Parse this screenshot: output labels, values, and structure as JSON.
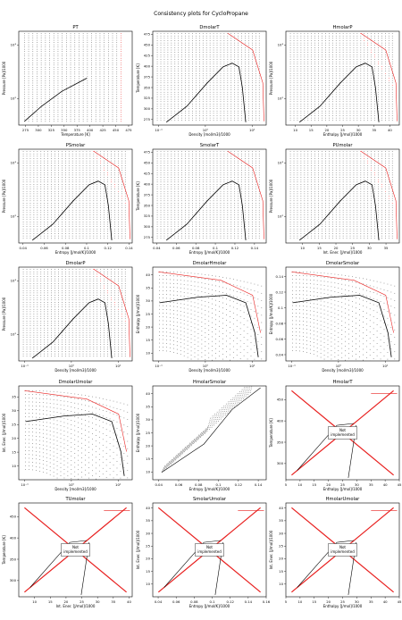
{
  "suptitle": "Consistency plots for CycloPropane",
  "colors": {
    "envelope": "#000000",
    "grid": "#555555",
    "red": "#e8201f",
    "frame": "#000000"
  },
  "not_implemented_label": "Not\nimplemented",
  "chart_data": [
    {
      "id": "PT",
      "type": "scatter",
      "title": "PT",
      "xlabel": "Temperature [K]",
      "ylabel": "Pressure [Pa]/1000",
      "xlim": [
        262,
        482
      ],
      "ylim": [
        32,
        1800
      ],
      "ylog": true,
      "xticks": [
        275,
        300,
        325,
        350,
        375,
        400,
        425,
        450,
        475
      ],
      "yticks": [
        {
          "v": 100,
          "l": "10²"
        },
        {
          "v": 1000,
          "l": "10³"
        }
      ],
      "pattern": "pt"
    },
    {
      "id": "DmolarT",
      "type": "scatter",
      "title": "DmolarT",
      "xlabel": "Density [mol/m3]/1000",
      "ylabel": "Temperature [K]",
      "xlim": [
        0.075,
        20
      ],
      "ylim": [
        262,
        482
      ],
      "xlog": true,
      "xticks": [
        {
          "v": 0.1,
          "l": "10⁻¹"
        },
        {
          "v": 1,
          "l": "10⁰"
        },
        {
          "v": 10,
          "l": "10¹"
        }
      ],
      "yticks": [
        275,
        300,
        325,
        350,
        375,
        400,
        425,
        450,
        475
      ],
      "pattern": "dome_T"
    },
    {
      "id": "HmolarP",
      "type": "scatter",
      "title": "HmolarP",
      "xlabel": "Enthalpy [J/mol]/1000",
      "ylabel": "Pressure [Pa]/1000",
      "xlim": [
        7,
        43
      ],
      "ylim": [
        32,
        1800
      ],
      "ylog": true,
      "xticks": [
        10,
        15,
        20,
        25,
        30,
        35,
        40
      ],
      "yticks": [
        {
          "v": 100,
          "l": "10²"
        },
        {
          "v": 1000,
          "l": "10³"
        }
      ],
      "pattern": "dome_P"
    },
    {
      "id": "PSmolar",
      "type": "scatter",
      "title": "PSmolar",
      "xlabel": "Entropy [J/mol/K]/1000",
      "ylabel": "Pressure [Pa]/1000",
      "xlim": [
        0.036,
        0.143
      ],
      "ylim": [
        32,
        1800
      ],
      "ylog": true,
      "xticks": [
        0.04,
        0.06,
        0.08,
        0.1,
        0.12,
        0.14
      ],
      "yticks": [
        {
          "v": 100,
          "l": "10²"
        },
        {
          "v": 1000,
          "l": "10³"
        }
      ],
      "pattern": "dome_P"
    },
    {
      "id": "SmolarT",
      "type": "scatter",
      "title": "SmolarT",
      "xlabel": "Entropy [J/mol/K]/1000",
      "ylabel": "Temperature [K]",
      "xlim": [
        0.036,
        0.152
      ],
      "ylim": [
        262,
        482
      ],
      "xticks": [
        0.04,
        0.06,
        0.08,
        0.1,
        0.12,
        0.14
      ],
      "yticks": [
        275,
        300,
        325,
        350,
        375,
        400,
        425,
        450,
        475
      ],
      "pattern": "dome_T"
    },
    {
      "id": "PUmolar",
      "type": "scatter",
      "title": "PUmolar",
      "xlabel": "Int. Ener. [J/mol]/1000",
      "ylabel": "Pressure [Pa]/1000",
      "xlim": [
        5,
        39
      ],
      "ylim": [
        32,
        1800
      ],
      "ylog": true,
      "xticks": [
        10,
        15,
        20,
        25,
        30,
        35
      ],
      "yticks": [
        {
          "v": 100,
          "l": "10²"
        },
        {
          "v": 1000,
          "l": "10³"
        }
      ],
      "pattern": "dome_P"
    },
    {
      "id": "DmolarP",
      "type": "scatter",
      "title": "DmolarP",
      "xlabel": "Density [mol/m3]/1000",
      "ylabel": "Pressure [Pa]/1000",
      "xlim": [
        0.075,
        20
      ],
      "ylim": [
        32,
        1800
      ],
      "xlog": true,
      "ylog": true,
      "xticks": [
        {
          "v": 0.1,
          "l": "10⁻¹"
        },
        {
          "v": 1,
          "l": "10⁰"
        },
        {
          "v": 10,
          "l": "10¹"
        }
      ],
      "yticks": [
        {
          "v": 100,
          "l": "10²"
        },
        {
          "v": 1000,
          "l": "10³"
        }
      ],
      "pattern": "dome_P"
    },
    {
      "id": "DmolarHmolar",
      "type": "scatter",
      "title": "DmolarHmolar",
      "xlabel": "Density [mol/m3]/1000",
      "ylabel": "Enthalpy [J/mol]/1000",
      "xlim": [
        0.075,
        20
      ],
      "ylim": [
        7,
        43
      ],
      "xlog": true,
      "xticks": [
        {
          "v": 0.1,
          "l": "10⁻¹"
        },
        {
          "v": 1,
          "l": "10⁰"
        },
        {
          "v": 10,
          "l": "10¹"
        }
      ],
      "yticks": [
        10,
        15,
        20,
        25,
        30,
        35,
        40
      ],
      "pattern": "fan"
    },
    {
      "id": "DmolarSmolar",
      "type": "scatter",
      "title": "DmolarSmolar",
      "xlabel": "Density [mol/m3]/1000",
      "ylabel": "Entropy [J/mol/K]/1000",
      "xlim": [
        0.075,
        20
      ],
      "ylim": [
        0.032,
        0.152
      ],
      "xlog": true,
      "xticks": [
        {
          "v": 0.1,
          "l": "10⁻¹"
        },
        {
          "v": 1,
          "l": "10⁰"
        },
        {
          "v": 10,
          "l": "10¹"
        }
      ],
      "yticks": [
        0.04,
        0.06,
        0.08,
        0.1,
        0.12,
        0.14
      ],
      "pattern": "fan"
    },
    {
      "id": "DmolarUmolar",
      "type": "scatter",
      "title": "DmolarUmolar",
      "xlabel": "Density [mol/m3]/1000",
      "ylabel": "Int. Ener. [J/mol]/1000",
      "xlim": [
        0.075,
        20
      ],
      "ylim": [
        5,
        39
      ],
      "xlog": true,
      "xticks": [
        {
          "v": 0.1,
          "l": "10⁻¹"
        },
        {
          "v": 1,
          "l": "10⁰"
        },
        {
          "v": 10,
          "l": "10¹"
        }
      ],
      "yticks": [
        10,
        15,
        20,
        25,
        30,
        35
      ],
      "pattern": "fan"
    },
    {
      "id": "HmolarSmolar",
      "type": "scatter",
      "title": "HmolarSmolar",
      "xlabel": "Entropy [J/mol/K]/1000",
      "ylabel": "Enthalpy [J/mol]/1000",
      "xlim": [
        0.034,
        0.148
      ],
      "ylim": [
        7,
        43
      ],
      "xticks": [
        0.04,
        0.06,
        0.08,
        0.1,
        0.12,
        0.14
      ],
      "yticks": [
        10,
        15,
        20,
        25,
        30,
        35,
        40
      ],
      "pattern": "band"
    },
    {
      "id": "HmolarT",
      "type": "scatter",
      "title": "HmolarT",
      "xlabel": "Enthalpy [J/mol]/1000",
      "ylabel": "Temperature [K]",
      "xlim": [
        5,
        45
      ],
      "ylim": [
        262,
        482
      ],
      "xticks": [
        5,
        10,
        15,
        20,
        25,
        30,
        35,
        40,
        45
      ],
      "yticks": [
        300,
        350,
        400,
        450
      ],
      "pattern": "notimpl",
      "not_implemented": true
    },
    {
      "id": "TUmolar",
      "type": "scatter",
      "title": "TUmolar",
      "xlabel": "Int. Ener. [J/mol]/1000",
      "ylabel": "Temperature [K]",
      "xlim": [
        5,
        41
      ],
      "ylim": [
        262,
        482
      ],
      "xticks": [
        10,
        15,
        20,
        25,
        30,
        35,
        40
      ],
      "yticks": [
        300,
        350,
        400,
        450
      ],
      "pattern": "notimpl",
      "not_implemented": true
    },
    {
      "id": "SmolarUmolar",
      "type": "scatter",
      "title": "SmolarUmolar",
      "xlabel": "Entropy [J/mol/K]/1000",
      "ylabel": "Int. Ener. [J/mol]/1000",
      "xlim": [
        0.034,
        0.16
      ],
      "ylim": [
        5,
        42
      ],
      "xticks": [
        0.04,
        0.06,
        0.08,
        0.1,
        0.12,
        0.14,
        0.16
      ],
      "yticks": [
        10,
        15,
        20,
        25,
        30,
        35,
        40
      ],
      "pattern": "notimpl",
      "not_implemented": true
    },
    {
      "id": "HmolarUmolar",
      "type": "scatter",
      "title": "HmolarUmolar",
      "xlabel": "Enthalpy [J/mol]/1000",
      "ylabel": "Int. Ener. [J/mol]/1000",
      "xlim": [
        5,
        45
      ],
      "ylim": [
        5,
        42
      ],
      "xticks": [
        5,
        10,
        15,
        20,
        25,
        30,
        35,
        40,
        45
      ],
      "yticks": [
        10,
        15,
        20,
        25,
        30,
        35,
        40
      ],
      "pattern": "notimpl",
      "not_implemented": true
    }
  ]
}
